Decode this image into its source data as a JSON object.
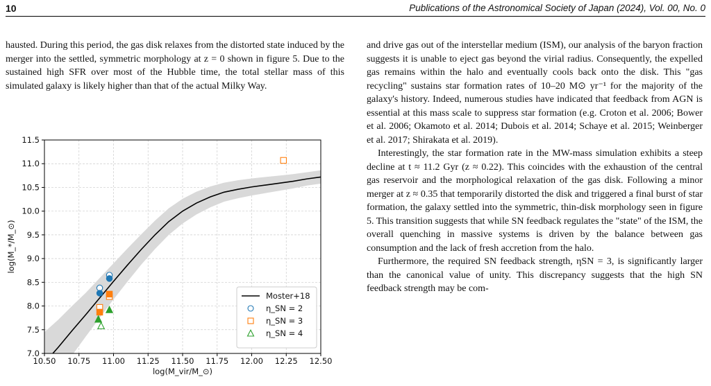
{
  "header": {
    "page_number": "10",
    "journal": "Publications of the Astronomical Society of Japan (2024), Vol. 00, No. 0"
  },
  "left_column": {
    "paragraph": "hausted. During this period, the gas disk relaxes from the distorted state induced by the merger into the settled, symmetric morphology at z = 0 shown in figure 5. Due to the sustained high SFR over most of the Hubble time, the total stellar mass of this simulated galaxy is likely higher than that of the actual Milky Way."
  },
  "right_column": {
    "paragraphs": [
      "and drive gas out of the interstellar medium (ISM), our analysis of the baryon fraction suggests it is unable to eject gas beyond the virial radius. Consequently, the expelled gas remains within the halo and eventually cools back onto the disk. This \"gas recycling\" sustains star formation rates of 10–20 M⊙ yr⁻¹ for the majority of the galaxy's history. Indeed, numerous studies have indicated that feedback from AGN is essential at this mass scale to suppress star formation (e.g. Croton et al. 2006; Bower et al. 2006; Okamoto et al. 2014; Dubois et al. 2014; Schaye et al. 2015; Weinberger et al. 2017; Shirakata et al. 2019).",
      "Interestingly, the star formation rate in the MW-mass simulation exhibits a steep decline at t ≈ 11.2 Gyr (z ≈ 0.22). This coincides with the exhaustion of the central gas reservoir and the morphological relaxation of the gas disk. Following a minor merger at z ≈ 0.35 that temporarily distorted the disk and triggered a final burst of star formation, the galaxy settled into the symmetric, thin-disk morphology seen in figure 5. This transition suggests that while SN feedback regulates the \"state\" of the ISM, the overall quenching in massive systems is driven by the balance between gas consumption and the lack of fresh accretion from the halo.",
      "Furthermore, the required SN feedback strength, ηSN = 3, is significantly larger than the canonical value of unity. This discrepancy suggests that the high SN feedback strength may be com-"
    ]
  },
  "chart_data": {
    "type": "scatter",
    "xlabel": "log(M_vir/M_⊙)",
    "ylabel": "log(M_*/M_⊙)",
    "xlim": [
      10.5,
      12.5
    ],
    "ylim": [
      7.0,
      11.5
    ],
    "x_ticks": [
      "10.50",
      "10.75",
      "11.00",
      "11.25",
      "11.50",
      "11.75",
      "12.00",
      "12.25",
      "12.50"
    ],
    "y_ticks": [
      "7.0",
      "7.5",
      "8.0",
      "8.5",
      "9.0",
      "9.5",
      "10.0",
      "10.5",
      "11.0",
      "11.5"
    ],
    "grid": true,
    "legend_position": "bottom-right",
    "relation": {
      "name": "Moster+18",
      "color": "#000000",
      "band_color": "#d9d9d9",
      "x": [
        10.5,
        10.6,
        10.7,
        10.8,
        10.9,
        11.0,
        11.1,
        11.2,
        11.3,
        11.4,
        11.5,
        11.6,
        11.7,
        11.8,
        11.9,
        12.0,
        12.1,
        12.2,
        12.3,
        12.4,
        12.5
      ],
      "y": [
        6.8,
        7.13,
        7.48,
        7.82,
        8.17,
        8.52,
        8.86,
        9.19,
        9.5,
        9.78,
        10.0,
        10.17,
        10.3,
        10.4,
        10.46,
        10.51,
        10.55,
        10.59,
        10.63,
        10.68,
        10.72
      ],
      "band_halfwidth": [
        0.65,
        0.58,
        0.52,
        0.46,
        0.42,
        0.38,
        0.35,
        0.32,
        0.3,
        0.28,
        0.26,
        0.24,
        0.22,
        0.2,
        0.19,
        0.18,
        0.17,
        0.16,
        0.15,
        0.14,
        0.14
      ]
    },
    "series": [
      {
        "name": "η_SN = 2",
        "marker": "circle",
        "color": "#1f77b4",
        "open": [
          {
            "x": 10.9,
            "y": 8.38
          },
          {
            "x": 10.97,
            "y": 8.65
          }
        ],
        "filled": [
          {
            "x": 10.9,
            "y": 8.27
          },
          {
            "x": 10.97,
            "y": 8.58
          }
        ]
      },
      {
        "name": "η_SN = 3",
        "marker": "square",
        "color": "#ff7f0e",
        "open": [
          {
            "x": 10.9,
            "y": 7.97
          },
          {
            "x": 10.97,
            "y": 8.2
          },
          {
            "x": 12.23,
            "y": 11.07
          }
        ],
        "filled": [
          {
            "x": 10.9,
            "y": 7.87
          },
          {
            "x": 10.97,
            "y": 8.25
          }
        ]
      },
      {
        "name": "η_SN = 4",
        "marker": "triangle",
        "color": "#2ca02c",
        "open": [
          {
            "x": 10.91,
            "y": 7.58
          }
        ],
        "filled": [
          {
            "x": 10.89,
            "y": 7.72
          },
          {
            "x": 10.97,
            "y": 7.92
          }
        ]
      }
    ]
  }
}
